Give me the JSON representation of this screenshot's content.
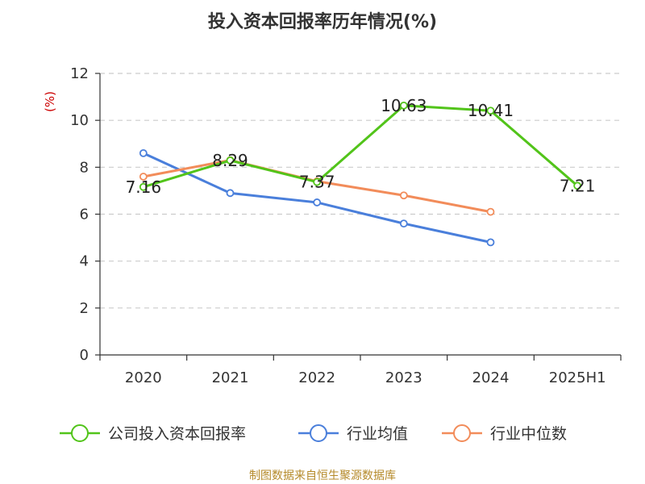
{
  "chart_data": {
    "type": "line",
    "title": "投入资本回报率历年情况(%)",
    "ylabel": "(%)",
    "xlabel": "",
    "categories": [
      "2020",
      "2021",
      "2022",
      "2023",
      "2024",
      "2025H1"
    ],
    "ylim": [
      0,
      12
    ],
    "yticks": [
      0,
      2,
      4,
      6,
      8,
      10,
      12
    ],
    "grid": true,
    "legend_position": "bottom",
    "series": [
      {
        "name": "公司投入资本回报率",
        "color": "#52c41a",
        "values": [
          7.16,
          8.29,
          7.37,
          10.63,
          10.41,
          7.21
        ],
        "labels": [
          "7.16",
          "8.29",
          "7.37",
          "10.63",
          "10.41",
          "7.21"
        ]
      },
      {
        "name": "行业均值",
        "color": "#4a7fdb",
        "values": [
          8.6,
          6.9,
          6.5,
          5.6,
          4.8,
          null
        ]
      },
      {
        "name": "行业中位数",
        "color": "#f28c5a",
        "values": [
          7.6,
          8.3,
          7.4,
          6.8,
          6.1,
          null
        ]
      }
    ]
  },
  "source_text": "制图数据来自恒生聚源数据库"
}
